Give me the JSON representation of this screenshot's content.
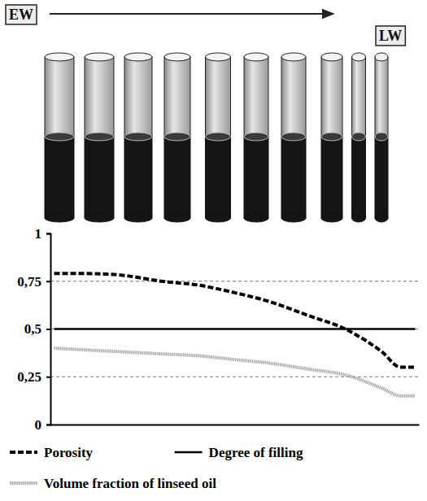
{
  "chart_data": {
    "type": "line",
    "annotations": [
      "EW",
      "LW"
    ],
    "x": [
      0.1,
      1,
      2,
      3,
      4,
      5,
      6,
      7,
      8,
      9,
      9.5,
      9.9
    ],
    "xlim": [
      0,
      10
    ],
    "xticks": [],
    "ylim": [
      0,
      1
    ],
    "yticks": [
      0,
      {
        "value": 0.25,
        "label": "0,25"
      },
      {
        "value": 0.5,
        "label": "0,5"
      },
      {
        "value": 0.75,
        "label": "0,75"
      },
      1
    ],
    "grid": true,
    "tick_labels": "y",
    "legend": "bottom",
    "series": [
      {
        "name": "Porosity",
        "color": "#000000",
        "line_style": "dashed",
        "values": [
          0.79,
          0.79,
          0.78,
          0.75,
          0.73,
          0.69,
          0.64,
          0.57,
          0.5,
          0.38,
          0.3,
          0.3
        ]
      },
      {
        "name": "Degree of filling",
        "color": "#000000",
        "line_style": "solid",
        "values": [
          0.5,
          0.5,
          0.5,
          0.5,
          0.5,
          0.5,
          0.5,
          0.5,
          0.5,
          0.5,
          0.5,
          0.5
        ]
      },
      {
        "name": "Volume fraction of linseed oil",
        "color": "#a8a8a8",
        "line_style": "dotted",
        "values": [
          0.4,
          0.39,
          0.38,
          0.37,
          0.36,
          0.34,
          0.32,
          0.29,
          0.26,
          0.19,
          0.15,
          0.15
        ]
      }
    ]
  }
}
